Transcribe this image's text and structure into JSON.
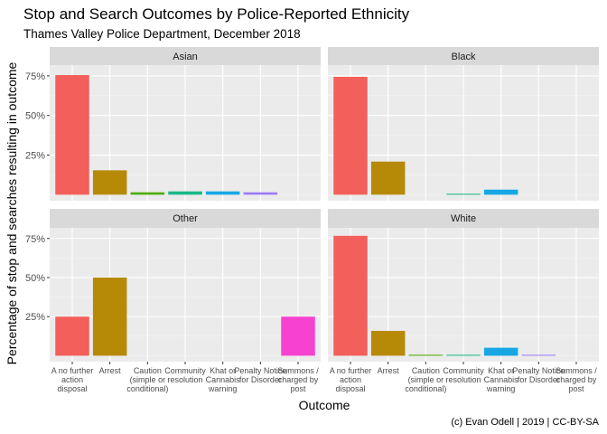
{
  "chart_data": {
    "type": "bar",
    "title": "Stop and Search Outcomes by Police-Reported Ethnicity",
    "subtitle": "Thames Valley Police Department, December 2018",
    "xlabel": "Outcome",
    "ylabel": "Percentage of stop and searches resulting in outcome",
    "caption": "(c) Evan Odell | 2019 | CC-BY-SA",
    "categories": [
      "A no further action disposal",
      "Arrest",
      "Caution (simple or conditional)",
      "Community resolution",
      "Khat or Cannabis warning",
      "Penalty Notice for Disorder",
      "Summons / charged by post"
    ],
    "category_labels": [
      [
        "A no further",
        "action",
        "disposal"
      ],
      [
        "Arrest"
      ],
      [
        "Caution",
        "(simple or",
        "conditional)"
      ],
      [
        "Community",
        "resolution"
      ],
      [
        "Khat or",
        "Cannabis",
        "warning"
      ],
      [
        "Penalty Notice",
        "for Disorder"
      ],
      [
        "Summons /",
        "charged by",
        "post"
      ]
    ],
    "colors": [
      "#F35F5A",
      "#B68A06",
      "#4DA902",
      "#19B886",
      "#17A7E4",
      "#9C79F5",
      "#F741CF"
    ],
    "yticks": [
      25,
      50,
      75
    ],
    "ytick_labels": [
      "25%",
      "50%",
      "75%"
    ],
    "ylim": [
      -3.8,
      81.8
    ],
    "grid": true,
    "legend": "none",
    "facets": [
      {
        "name": "Asian",
        "values": [
          75.5,
          15.4,
          1.5,
          2.1,
          2.1,
          1.5,
          0
        ]
      },
      {
        "name": "Black",
        "values": [
          74.4,
          20.9,
          0,
          0.6,
          3.2,
          0,
          0
        ]
      },
      {
        "name": "Other",
        "values": [
          25,
          50,
          0,
          0,
          0,
          0,
          25
        ]
      },
      {
        "name": "White",
        "values": [
          76.7,
          15.9,
          0.6,
          0.6,
          5.1,
          0.6,
          0
        ]
      }
    ]
  }
}
